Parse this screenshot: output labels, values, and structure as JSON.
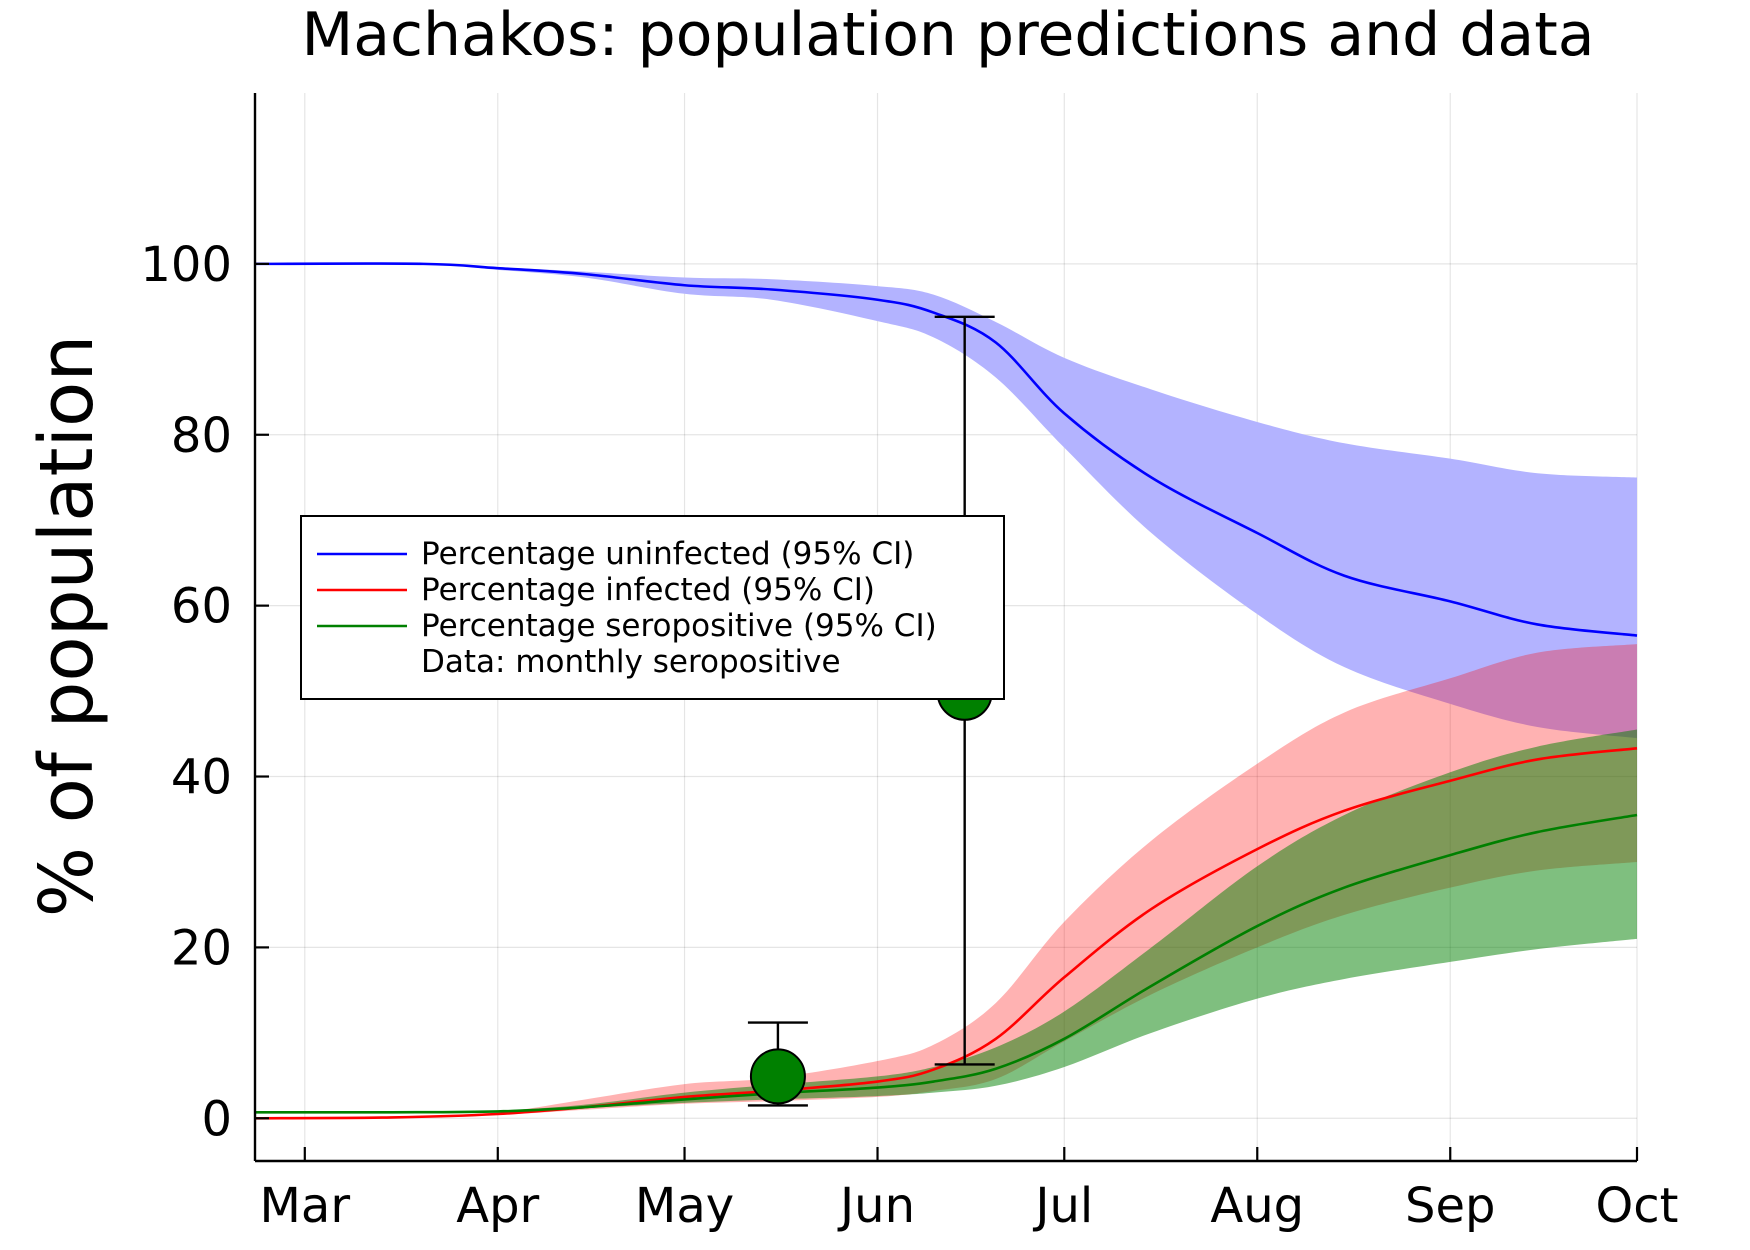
{
  "chart_data": {
    "type": "line",
    "title": "Machakos: population predictions and data",
    "xlabel": "",
    "ylabel": "% of population",
    "xlim": [
      "2020-02-22",
      "2020-10-01"
    ],
    "ylim": [
      -5,
      120
    ],
    "grid": true,
    "x_ticks": [
      {
        "date": "2020-03-01",
        "label": "Mar"
      },
      {
        "date": "2020-04-01",
        "label": "Apr"
      },
      {
        "date": "2020-05-01",
        "label": "May"
      },
      {
        "date": "2020-06-01",
        "label": "Jun"
      },
      {
        "date": "2020-07-01",
        "label": "Jul"
      },
      {
        "date": "2020-08-01",
        "label": "Aug"
      },
      {
        "date": "2020-09-01",
        "label": "Sep"
      },
      {
        "date": "2020-10-01",
        "label": "Oct"
      }
    ],
    "y_ticks": [
      {
        "value": 0,
        "label": "0"
      },
      {
        "value": 20,
        "label": "20"
      },
      {
        "value": 40,
        "label": "40"
      },
      {
        "value": 60,
        "label": "60"
      },
      {
        "value": 80,
        "label": "80"
      },
      {
        "value": 100,
        "label": "100"
      }
    ],
    "legend": {
      "position": "left-middle",
      "entries": [
        {
          "label": "Percentage uninfected (95% CI)",
          "color": "#0000ff",
          "kind": "line"
        },
        {
          "label": "Percentage infected (95% CI)",
          "color": "#ff0000",
          "kind": "line"
        },
        {
          "label": "Percentage seropositive (95% CI)",
          "color": "#008000",
          "kind": "line"
        },
        {
          "label": "Data: monthly seropositive",
          "color": "#008000",
          "kind": "marker"
        }
      ]
    },
    "series": [
      {
        "name": "Percentage uninfected (95% CI)",
        "color": "#0000ff",
        "band_color": "#b3b3ff",
        "band_opacity": 1.0,
        "points": [
          {
            "x": "2020-02-22",
            "y": 100,
            "lo": 100,
            "hi": 100
          },
          {
            "x": "2020-03-20",
            "y": 100,
            "lo": 100,
            "hi": 100
          },
          {
            "x": "2020-04-01",
            "y": 99.5,
            "lo": 99.3,
            "hi": 99.6
          },
          {
            "x": "2020-04-15",
            "y": 98.8,
            "lo": 98.4,
            "hi": 99.1
          },
          {
            "x": "2020-05-01",
            "y": 97.5,
            "lo": 96.5,
            "hi": 98.4
          },
          {
            "x": "2020-05-15",
            "y": 97.0,
            "lo": 95.8,
            "hi": 98.2
          },
          {
            "x": "2020-06-01",
            "y": 95.8,
            "lo": 93.3,
            "hi": 97.4
          },
          {
            "x": "2020-06-10",
            "y": 94.3,
            "lo": 91.4,
            "hi": 96.4
          },
          {
            "x": "2020-06-20",
            "y": 90.8,
            "lo": 86.7,
            "hi": 93.2
          },
          {
            "x": "2020-07-01",
            "y": 82.5,
            "lo": 78.5,
            "hi": 89.0
          },
          {
            "x": "2020-07-15",
            "y": 75.0,
            "lo": 68.5,
            "hi": 85.3
          },
          {
            "x": "2020-08-01",
            "y": 68.5,
            "lo": 59.0,
            "hi": 81.5
          },
          {
            "x": "2020-08-15",
            "y": 63.5,
            "lo": 52.8,
            "hi": 79.0
          },
          {
            "x": "2020-09-01",
            "y": 60.5,
            "lo": 48.5,
            "hi": 77.2
          },
          {
            "x": "2020-09-15",
            "y": 57.8,
            "lo": 45.8,
            "hi": 75.5
          },
          {
            "x": "2020-10-01",
            "y": 56.5,
            "lo": 44.5,
            "hi": 75.0
          }
        ]
      },
      {
        "name": "Percentage infected (95% CI)",
        "color": "#ff0000",
        "band_color": "#ff0000",
        "band_opacity": 0.3,
        "points": [
          {
            "x": "2020-02-22",
            "y": 0,
            "lo": 0,
            "hi": 0
          },
          {
            "x": "2020-03-15",
            "y": 0.1,
            "lo": 0.1,
            "hi": 0.2
          },
          {
            "x": "2020-04-01",
            "y": 0.5,
            "lo": 0.4,
            "hi": 0.7
          },
          {
            "x": "2020-04-15",
            "y": 1.3,
            "lo": 1.0,
            "hi": 2.2
          },
          {
            "x": "2020-05-01",
            "y": 2.5,
            "lo": 1.7,
            "hi": 4.0
          },
          {
            "x": "2020-05-15",
            "y": 3.2,
            "lo": 2.0,
            "hi": 4.7
          },
          {
            "x": "2020-06-01",
            "y": 4.3,
            "lo": 2.5,
            "hi": 6.7
          },
          {
            "x": "2020-06-10",
            "y": 5.7,
            "lo": 3.2,
            "hi": 8.6
          },
          {
            "x": "2020-06-20",
            "y": 9.3,
            "lo": 4.6,
            "hi": 13.5
          },
          {
            "x": "2020-07-01",
            "y": 16.5,
            "lo": 9.0,
            "hi": 23.0
          },
          {
            "x": "2020-07-15",
            "y": 24.5,
            "lo": 14.5,
            "hi": 32.5
          },
          {
            "x": "2020-08-01",
            "y": 31.5,
            "lo": 20.0,
            "hi": 41.5
          },
          {
            "x": "2020-08-15",
            "y": 36.0,
            "lo": 23.8,
            "hi": 47.5
          },
          {
            "x": "2020-09-01",
            "y": 39.5,
            "lo": 27.0,
            "hi": 51.5
          },
          {
            "x": "2020-09-15",
            "y": 42.0,
            "lo": 29.0,
            "hi": 54.5
          },
          {
            "x": "2020-10-01",
            "y": 43.3,
            "lo": 30.0,
            "hi": 55.5
          }
        ]
      },
      {
        "name": "Percentage seropositive (95% CI)",
        "color": "#008000",
        "band_color": "#008000",
        "band_opacity": 0.5,
        "points": [
          {
            "x": "2020-02-22",
            "y": 0.7,
            "lo": 0.7,
            "hi": 0.7
          },
          {
            "x": "2020-03-15",
            "y": 0.7,
            "lo": 0.7,
            "hi": 0.7
          },
          {
            "x": "2020-04-01",
            "y": 0.8,
            "lo": 0.8,
            "hi": 0.9
          },
          {
            "x": "2020-04-15",
            "y": 1.3,
            "lo": 1.2,
            "hi": 1.6
          },
          {
            "x": "2020-05-01",
            "y": 2.2,
            "lo": 1.8,
            "hi": 3.0
          },
          {
            "x": "2020-05-15",
            "y": 2.9,
            "lo": 2.2,
            "hi": 3.9
          },
          {
            "x": "2020-06-01",
            "y": 3.6,
            "lo": 2.6,
            "hi": 4.9
          },
          {
            "x": "2020-06-10",
            "y": 4.3,
            "lo": 3.0,
            "hi": 6.0
          },
          {
            "x": "2020-06-20",
            "y": 5.8,
            "lo": 3.8,
            "hi": 8.3
          },
          {
            "x": "2020-07-01",
            "y": 9.3,
            "lo": 6.0,
            "hi": 12.5
          },
          {
            "x": "2020-07-15",
            "y": 15.5,
            "lo": 10.0,
            "hi": 20.0
          },
          {
            "x": "2020-08-01",
            "y": 22.5,
            "lo": 14.0,
            "hi": 29.5
          },
          {
            "x": "2020-08-15",
            "y": 27.0,
            "lo": 16.3,
            "hi": 35.5
          },
          {
            "x": "2020-09-01",
            "y": 30.8,
            "lo": 18.3,
            "hi": 40.5
          },
          {
            "x": "2020-09-15",
            "y": 33.5,
            "lo": 19.8,
            "hi": 43.5
          },
          {
            "x": "2020-10-01",
            "y": 35.5,
            "lo": 21.0,
            "hi": 45.5
          }
        ]
      }
    ],
    "data_points": {
      "name": "Data: monthly seropositive",
      "color": "#008000",
      "points": [
        {
          "x": "2020-05-16",
          "y": 4.9,
          "lo": 1.5,
          "hi": 11.2
        },
        {
          "x": "2020-06-15",
          "y": 49.8,
          "lo": 6.3,
          "hi": 93.8
        }
      ]
    }
  }
}
